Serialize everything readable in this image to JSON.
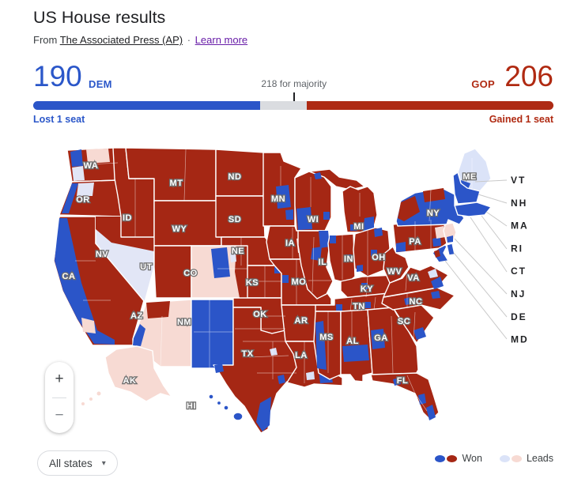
{
  "header": {
    "title": "US House results",
    "source_prefix": "From",
    "source_link": "The Associated Press (AP)",
    "separator": "·",
    "learn_more": "Learn more"
  },
  "scoreboard": {
    "dem_seats": 190,
    "dem_label": "DEM",
    "gop_seats": 206,
    "gop_label": "GOP",
    "total_seats": 435,
    "majority_seats": 218,
    "majority_note": "218 for majority",
    "dem_change": "Lost 1 seat",
    "gop_change": "Gained 1 seat"
  },
  "map": {
    "state_labels": [
      "WA",
      "OR",
      "ID",
      "MT",
      "ND",
      "SD",
      "WY",
      "NV",
      "UT",
      "CO",
      "CA",
      "NE",
      "KS",
      "OK",
      "AZ",
      "NM",
      "TX",
      "MN",
      "IA",
      "MO",
      "AR",
      "LA",
      "WI",
      "IL",
      "IN",
      "MI",
      "OH",
      "KY",
      "TN",
      "MS",
      "AL",
      "GA",
      "WV",
      "VA",
      "NC",
      "SC",
      "PA",
      "NY",
      "ME",
      "FL",
      "AK",
      "HI"
    ],
    "east_state_labels": [
      "VT",
      "NH",
      "MA",
      "RI",
      "CT",
      "NJ",
      "DE",
      "MD"
    ]
  },
  "controls": {
    "zoom_in": "+",
    "zoom_out": "−",
    "states_dropdown": "All states",
    "dropdown_caret": "▾"
  },
  "legend": {
    "won_label": "Won",
    "leads_label": "Leads"
  },
  "colors": {
    "dem_won": "#2b55c8",
    "gop_won": "#a52714",
    "dem_leads": "#dbe3f8",
    "gop_leads": "#f7dad3",
    "bar_remaining": "#dadce0",
    "dem_text": "#2b57c9",
    "gop_text": "#b02a12"
  }
}
